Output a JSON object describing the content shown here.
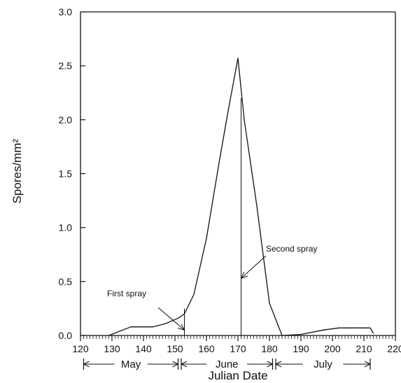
{
  "chart_data": {
    "type": "line",
    "title": "",
    "xlabel": "Julian Date",
    "ylabel": "Spores/mm²",
    "xlim": [
      120,
      220
    ],
    "ylim": [
      0,
      3.0
    ],
    "x_ticks": [
      120,
      130,
      140,
      150,
      160,
      170,
      180,
      190,
      200,
      210,
      220
    ],
    "y_ticks": [
      0.0,
      0.5,
      1.0,
      1.5,
      2.0,
      2.5,
      3.0
    ],
    "y_tick_labels": [
      "0.0",
      "0.5",
      "1.0",
      "1.5",
      "2.0",
      "2.5",
      "3.0"
    ],
    "grid": false,
    "legend": "none",
    "series": [
      {
        "points": [
          [
            129,
            0.0
          ],
          [
            136,
            0.08
          ],
          [
            143,
            0.08
          ],
          [
            147,
            0.11
          ],
          [
            151,
            0.16
          ],
          [
            153,
            0.2
          ],
          [
            156,
            0.38
          ],
          [
            160,
            0.9
          ],
          [
            164,
            1.6
          ],
          [
            167,
            2.1
          ],
          [
            170,
            2.57
          ],
          [
            172,
            2.0
          ],
          [
            176,
            1.2
          ],
          [
            180,
            0.3
          ],
          [
            184,
            0.0
          ],
          [
            190,
            0.01
          ],
          [
            197,
            0.05
          ],
          [
            202,
            0.07
          ],
          [
            206,
            0.07
          ],
          [
            212,
            0.07
          ],
          [
            213,
            0.02
          ]
        ]
      }
    ],
    "spray_lines": [
      {
        "x": 153,
        "y_top": 0.25
      },
      {
        "x": 171,
        "y_top": 2.2
      }
    ],
    "annotations": [
      {
        "text": "First spray",
        "arrow_to": [
          153,
          0.05
        ]
      },
      {
        "text": "Second spray",
        "arrow_to": [
          171,
          0.53
        ]
      }
    ],
    "months": [
      {
        "label": "May",
        "start": 121,
        "end": 151
      },
      {
        "label": "June",
        "start": 152,
        "end": 181
      },
      {
        "label": "July",
        "start": 182,
        "end": 212
      }
    ],
    "line_color": "#111111"
  }
}
